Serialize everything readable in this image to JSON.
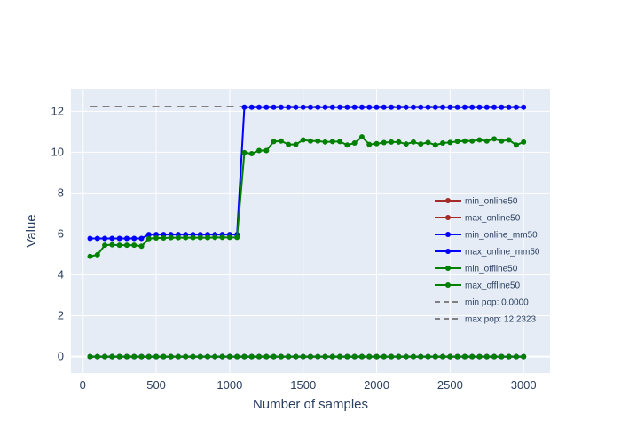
{
  "chart_data": {
    "type": "line",
    "xlabel": "Number of samples",
    "ylabel": "Value",
    "xlim": [
      -80,
      3180
    ],
    "ylim": [
      -0.8,
      13.1
    ],
    "xticks": [
      0,
      500,
      1000,
      1500,
      2000,
      2500,
      3000
    ],
    "yticks": [
      0,
      2,
      4,
      6,
      8,
      10,
      12
    ],
    "x": [
      50,
      100,
      150,
      200,
      250,
      300,
      350,
      400,
      450,
      500,
      550,
      600,
      650,
      700,
      750,
      800,
      850,
      900,
      950,
      1000,
      1050,
      1100,
      1150,
      1200,
      1250,
      1300,
      1350,
      1400,
      1450,
      1500,
      1550,
      1600,
      1650,
      1700,
      1750,
      1800,
      1850,
      1900,
      1950,
      2000,
      2050,
      2100,
      2150,
      2200,
      2250,
      2300,
      2350,
      2400,
      2450,
      2500,
      2550,
      2600,
      2650,
      2700,
      2750,
      2800,
      2850,
      2900,
      2950,
      3000
    ],
    "series": [
      {
        "name": "min_online50",
        "color": "#a52a2a",
        "values": [
          0,
          0,
          0,
          0,
          0,
          0,
          0,
          0,
          0,
          0,
          0,
          0,
          0,
          0,
          0,
          0,
          0,
          0,
          0,
          0,
          0,
          0,
          0,
          0,
          0,
          0,
          0,
          0,
          0,
          0,
          0,
          0,
          0,
          0,
          0,
          0,
          0,
          0,
          0,
          0,
          0,
          0,
          0,
          0,
          0,
          0,
          0,
          0,
          0,
          0,
          0,
          0,
          0,
          0,
          0,
          0,
          0,
          0,
          0,
          0
        ]
      },
      {
        "name": "max_online50",
        "color": "#a52a2a",
        "values": [
          0,
          0,
          0,
          0,
          0,
          0,
          0,
          0,
          0,
          0,
          0,
          0,
          0,
          0,
          0,
          0,
          0,
          0,
          0,
          0,
          0,
          0,
          0,
          0,
          0,
          0,
          0,
          0,
          0,
          0,
          0,
          0,
          0,
          0,
          0,
          0,
          0,
          0,
          0,
          0,
          0,
          0,
          0,
          0,
          0,
          0,
          0,
          0,
          0,
          0,
          0,
          0,
          0,
          0,
          0,
          0,
          0,
          0,
          0,
          0
        ]
      },
      {
        "name": "min_online_mm50",
        "color": "#0000ff",
        "values": [
          0,
          0,
          0,
          0,
          0,
          0,
          0,
          0,
          0,
          0,
          0,
          0,
          0,
          0,
          0,
          0,
          0,
          0,
          0,
          0,
          0,
          0,
          0,
          0,
          0,
          0,
          0,
          0,
          0,
          0,
          0,
          0,
          0,
          0,
          0,
          0,
          0,
          0,
          0,
          0,
          0,
          0,
          0,
          0,
          0,
          0,
          0,
          0,
          0,
          0,
          0,
          0,
          0,
          0,
          0,
          0,
          0,
          0,
          0,
          0
        ]
      },
      {
        "name": "max_online_mm50",
        "color": "#0000ff",
        "values": [
          5.78,
          5.78,
          5.78,
          5.78,
          5.78,
          5.78,
          5.78,
          5.78,
          5.97,
          5.97,
          5.97,
          5.97,
          5.97,
          5.97,
          5.97,
          5.97,
          5.97,
          5.97,
          5.97,
          5.97,
          5.97,
          12.2,
          12.2,
          12.2,
          12.2,
          12.2,
          12.2,
          12.2,
          12.2,
          12.2,
          12.2,
          12.2,
          12.2,
          12.2,
          12.2,
          12.2,
          12.2,
          12.2,
          12.2,
          12.2,
          12.2,
          12.2,
          12.2,
          12.2,
          12.2,
          12.2,
          12.2,
          12.2,
          12.2,
          12.2,
          12.2,
          12.2,
          12.2,
          12.2,
          12.2,
          12.2,
          12.2,
          12.2,
          12.2,
          12.2
        ]
      },
      {
        "name": "min_offline50",
        "color": "#008000",
        "values": [
          0,
          0,
          0,
          0,
          0,
          0,
          0,
          0,
          0,
          0,
          0,
          0,
          0,
          0,
          0,
          0,
          0,
          0,
          0,
          0,
          0,
          0,
          0,
          0,
          0,
          0,
          0,
          0,
          0,
          0,
          0,
          0,
          0,
          0,
          0,
          0,
          0,
          0,
          0,
          0,
          0,
          0,
          0,
          0,
          0,
          0,
          0,
          0,
          0,
          0,
          0,
          0,
          0,
          0,
          0,
          0,
          0,
          0,
          0,
          0
        ]
      },
      {
        "name": "max_offline50",
        "color": "#008000",
        "values": [
          4.9,
          4.98,
          5.45,
          5.47,
          5.45,
          5.45,
          5.45,
          5.4,
          5.77,
          5.8,
          5.8,
          5.82,
          5.82,
          5.82,
          5.82,
          5.82,
          5.82,
          5.83,
          5.83,
          5.83,
          5.83,
          9.98,
          9.93,
          10.08,
          10.08,
          10.52,
          10.55,
          10.38,
          10.38,
          10.6,
          10.55,
          10.55,
          10.5,
          10.52,
          10.52,
          10.35,
          10.45,
          10.75,
          10.38,
          10.42,
          10.47,
          10.5,
          10.5,
          10.4,
          10.5,
          10.4,
          10.48,
          10.35,
          10.45,
          10.48,
          10.53,
          10.55,
          10.55,
          10.6,
          10.55,
          10.65,
          10.55,
          10.6,
          10.35,
          10.5
        ]
      }
    ],
    "reference_lines": [
      {
        "name": "min pop: 0.0000",
        "y": 0.0,
        "x_range": [
          50,
          3000
        ],
        "color": "#808080",
        "dash": "dashed"
      },
      {
        "name": "max pop: 12.2323",
        "y": 12.2323,
        "x_range": [
          50,
          3000
        ],
        "color": "#808080",
        "dash": "dashed"
      }
    ],
    "legend_placement": "right",
    "grid": true
  }
}
